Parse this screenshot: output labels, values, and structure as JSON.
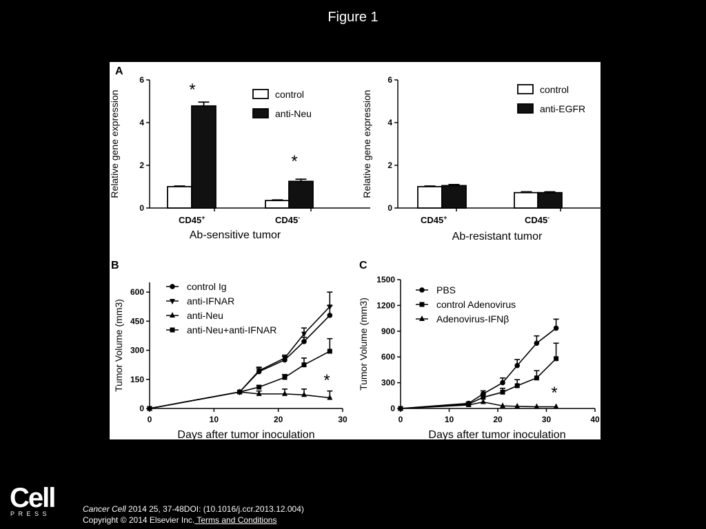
{
  "slide": {
    "title": "Figure 1",
    "logo": {
      "brand": "Cell",
      "subtitle": "PRESS"
    },
    "citation": {
      "journal": "Cancer Cell",
      "details": "2014 25, 37-48DOI: (10.1016/j.ccr.2013.12.004)",
      "copyright": "Copyright © 2014 Elsevier Inc.",
      "terms_link": " Terms and Conditions"
    }
  },
  "chart_data": [
    {
      "panel": "A",
      "type": "bar",
      "ylabel": "Relative gene expression",
      "xlabel": "Ab-sensitive tumor",
      "categories": [
        "CD45",
        "CD45"
      ],
      "category_superscripts": [
        "+",
        "-"
      ],
      "ylim": [
        0,
        6
      ],
      "yticks": [
        0,
        2,
        4,
        6
      ],
      "series": [
        {
          "name": "control",
          "fill": "#ffffff",
          "values": [
            1.0,
            0.35
          ],
          "errors": [
            0.03,
            0.03
          ]
        },
        {
          "name": "anti-Neu",
          "fill": "#111111",
          "values": [
            4.78,
            1.25
          ],
          "errors": [
            0.18,
            0.1
          ]
        }
      ],
      "annotations": [
        "*",
        "*"
      ],
      "legend": "top-right"
    },
    {
      "panel": "",
      "type": "bar",
      "ylabel": "Relative gene expression",
      "xlabel": "Ab-resistant tumor",
      "categories": [
        "CD45",
        "CD45"
      ],
      "category_superscripts": [
        "+",
        "-"
      ],
      "ylim": [
        0,
        6
      ],
      "yticks": [
        0,
        2,
        4,
        6
      ],
      "series": [
        {
          "name": "control",
          "fill": "#ffffff",
          "values": [
            1.0,
            0.72
          ],
          "errors": [
            0.03,
            0.04
          ]
        },
        {
          "name": "anti-EGFR",
          "fill": "#111111",
          "values": [
            1.05,
            0.72
          ],
          "errors": [
            0.05,
            0.04
          ]
        }
      ],
      "legend": "top-right"
    },
    {
      "panel": "B",
      "type": "line",
      "ylabel": "Tumor Volume (mm3)",
      "xlabel": "Days after tumor inoculation",
      "xlim": [
        0,
        30
      ],
      "xticks": [
        0,
        10,
        20,
        30
      ],
      "ylim": [
        0,
        650
      ],
      "yticks": [
        0,
        150,
        300,
        450,
        600
      ],
      "series": [
        {
          "name": "control Ig",
          "marker": "circle",
          "x": [
            0,
            14,
            17,
            21,
            24,
            28
          ],
          "y": [
            0,
            85,
            190,
            250,
            345,
            480
          ],
          "err": [
            0,
            0,
            20,
            18,
            22,
            50
          ]
        },
        {
          "name": "anti-IFNAR",
          "marker": "triangle-down",
          "x": [
            0,
            14,
            17,
            21,
            24,
            28
          ],
          "y": [
            0,
            85,
            195,
            260,
            385,
            525
          ],
          "err": [
            0,
            0,
            18,
            15,
            30,
            75
          ]
        },
        {
          "name": "anti-Neu",
          "marker": "triangle-up",
          "x": [
            0,
            14,
            17,
            21,
            24,
            28
          ],
          "y": [
            0,
            85,
            75,
            75,
            70,
            55
          ],
          "err": [
            0,
            0,
            15,
            25,
            30,
            35
          ]
        },
        {
          "name": "anti-Neu+anti-IFNAR",
          "marker": "square",
          "x": [
            0,
            14,
            17,
            21,
            24,
            28
          ],
          "y": [
            0,
            85,
            110,
            160,
            225,
            295
          ],
          "err": [
            0,
            0,
            8,
            15,
            35,
            65
          ]
        }
      ],
      "annotations": [
        "*"
      ],
      "legend": "top-left"
    },
    {
      "panel": "C",
      "type": "line",
      "ylabel": "Tumor Volume (mm3)",
      "xlabel": "Days after tumor inoculation",
      "xlim": [
        0,
        40
      ],
      "xticks": [
        0,
        10,
        20,
        30,
        40
      ],
      "ylim": [
        0,
        1500
      ],
      "yticks": [
        0,
        300,
        600,
        900,
        1200,
        1500
      ],
      "series": [
        {
          "name": "PBS",
          "marker": "circle",
          "x": [
            0,
            14,
            17,
            21,
            24,
            28,
            32
          ],
          "y": [
            0,
            60,
            170,
            300,
            500,
            760,
            935
          ],
          "err": [
            0,
            15,
            35,
            55,
            70,
            85,
            105
          ]
        },
        {
          "name": "control Adenovirus",
          "marker": "square",
          "x": [
            0,
            14,
            17,
            21,
            24,
            28,
            32
          ],
          "y": [
            0,
            50,
            130,
            190,
            265,
            355,
            580
          ],
          "err": [
            0,
            15,
            35,
            45,
            70,
            85,
            180
          ]
        },
        {
          "name": "Adenovirus-IFNβ",
          "marker": "triangle-up",
          "x": [
            0,
            14,
            17,
            21,
            24,
            28,
            32
          ],
          "y": [
            0,
            40,
            75,
            30,
            25,
            20,
            20
          ],
          "err": [
            0,
            0,
            0,
            0,
            0,
            0,
            0
          ]
        }
      ],
      "annotations": [
        "*"
      ],
      "legend": "top-left"
    }
  ]
}
